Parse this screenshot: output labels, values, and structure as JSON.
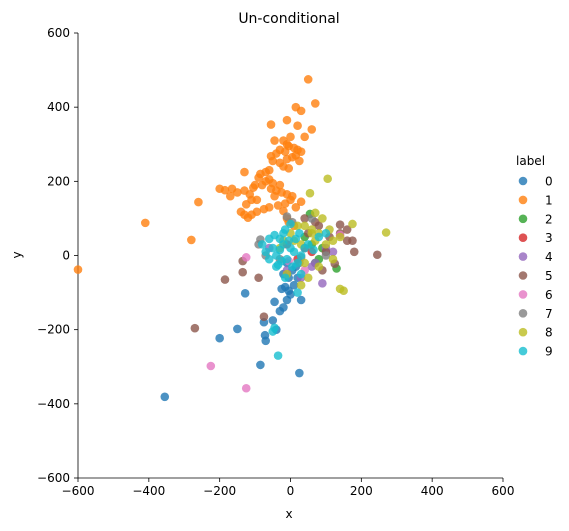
{
  "chart_data": {
    "type": "scatter",
    "title": "Un-conditional",
    "xlabel": "x",
    "ylabel": "y",
    "xlim": [
      -600,
      600
    ],
    "ylim": [
      -600,
      600
    ],
    "xticks": [
      -600,
      -400,
      -200,
      0,
      200,
      400,
      600
    ],
    "yticks": [
      -600,
      -400,
      -200,
      0,
      200,
      400,
      600
    ],
    "grid": false,
    "legend": {
      "title": "label",
      "placement": "right"
    },
    "series": [
      {
        "name": "0",
        "color": "#1f77b4",
        "points": [
          [
            -355,
            -381
          ],
          [
            -200,
            -223
          ],
          [
            -150,
            -198
          ],
          [
            -85,
            -295
          ],
          [
            -70,
            -230
          ],
          [
            -72,
            -215
          ],
          [
            -75,
            -180
          ],
          [
            -50,
            -175
          ],
          [
            -30,
            -150
          ],
          [
            -20,
            -140
          ],
          [
            -10,
            -120
          ],
          [
            0,
            -105
          ],
          [
            -5,
            -95
          ],
          [
            10,
            -80
          ],
          [
            -15,
            -85
          ],
          [
            -128,
            -102
          ],
          [
            -45,
            -125
          ],
          [
            -25,
            -90
          ],
          [
            -5,
            -60
          ],
          [
            5,
            -40
          ],
          [
            15,
            -30
          ],
          [
            -20,
            -50
          ],
          [
            -10,
            -20
          ],
          [
            20,
            -60
          ],
          [
            25,
            -317
          ],
          [
            -40,
            -200
          ],
          [
            30,
            -120
          ]
        ]
      },
      {
        "name": "1",
        "color": "#ff7f0e",
        "points": [
          [
            50,
            475
          ],
          [
            70,
            410
          ],
          [
            15,
            400
          ],
          [
            30,
            390
          ],
          [
            -10,
            365
          ],
          [
            20,
            350
          ],
          [
            -55,
            353
          ],
          [
            60,
            340
          ],
          [
            40,
            320
          ],
          [
            0,
            320
          ],
          [
            -20,
            310
          ],
          [
            -45,
            310
          ],
          [
            -10,
            300
          ],
          [
            -5,
            295
          ],
          [
            10,
            290
          ],
          [
            20,
            285
          ],
          [
            30,
            280
          ],
          [
            -30,
            285
          ],
          [
            -15,
            280
          ],
          [
            -40,
            275
          ],
          [
            -55,
            268
          ],
          [
            -50,
            255
          ],
          [
            -30,
            250
          ],
          [
            -10,
            260
          ],
          [
            5,
            265
          ],
          [
            15,
            270
          ],
          [
            25,
            255
          ],
          [
            -20,
            240
          ],
          [
            -5,
            235
          ],
          [
            -60,
            230
          ],
          [
            -70,
            225
          ],
          [
            -85,
            220
          ],
          [
            -90,
            210
          ],
          [
            -70,
            200
          ],
          [
            -50,
            195
          ],
          [
            -30,
            190
          ],
          [
            -40,
            175
          ],
          [
            -25,
            170
          ],
          [
            -10,
            165
          ],
          [
            5,
            160
          ],
          [
            0,
            150
          ],
          [
            -15,
            140
          ],
          [
            -35,
            135
          ],
          [
            -60,
            130
          ],
          [
            -75,
            125
          ],
          [
            -95,
            118
          ],
          [
            -110,
            110
          ],
          [
            -120,
            102
          ],
          [
            -130,
            110
          ],
          [
            -140,
            118
          ],
          [
            -125,
            138
          ],
          [
            -110,
            150
          ],
          [
            -115,
            165
          ],
          [
            -130,
            175
          ],
          [
            -150,
            170
          ],
          [
            -165,
            180
          ],
          [
            -185,
            176
          ],
          [
            -105,
            183
          ],
          [
            -55,
            180
          ],
          [
            -45,
            160
          ],
          [
            -20,
            120
          ],
          [
            -10,
            100
          ],
          [
            -5,
            90
          ],
          [
            10,
            80
          ],
          [
            15,
            130
          ],
          [
            30,
            145
          ],
          [
            -260,
            144
          ],
          [
            -410,
            88
          ],
          [
            -280,
            42
          ],
          [
            -600,
            -38
          ],
          [
            -170,
            160
          ],
          [
            -200,
            180
          ],
          [
            -95,
            150
          ],
          [
            -80,
            190
          ],
          [
            -60,
            205
          ],
          [
            -130,
            225
          ],
          [
            -100,
            190
          ]
        ]
      },
      {
        "name": "2",
        "color": "#2ca02c",
        "points": [
          [
            130,
            -35
          ],
          [
            55,
            112
          ],
          [
            70,
            -20
          ],
          [
            90,
            20
          ],
          [
            60,
            30
          ],
          [
            40,
            50
          ],
          [
            80,
            -10
          ]
        ]
      },
      {
        "name": "3",
        "color": "#d62728",
        "points": [
          [
            40,
            20
          ],
          [
            60,
            10
          ],
          [
            20,
            -10
          ],
          [
            -10,
            30
          ]
        ]
      },
      {
        "name": "4",
        "color": "#9467bd",
        "points": [
          [
            90,
            -75
          ],
          [
            -60,
            20
          ],
          [
            -10,
            -40
          ],
          [
            30,
            -60
          ],
          [
            60,
            -30
          ],
          [
            100,
            20
          ],
          [
            70,
            -20
          ],
          [
            120,
            10
          ]
        ]
      },
      {
        "name": "5",
        "color": "#8c564b",
        "points": [
          [
            -270,
            -196
          ],
          [
            -135,
            -45
          ],
          [
            -185,
            -65
          ],
          [
            -135,
            -15
          ],
          [
            -75,
            -165
          ],
          [
            -90,
            -60
          ],
          [
            245,
            2
          ],
          [
            140,
            60
          ],
          [
            160,
            40
          ],
          [
            125,
            -22
          ],
          [
            100,
            10
          ],
          [
            110,
            50
          ],
          [
            160,
            70
          ],
          [
            80,
            80
          ],
          [
            50,
            60
          ],
          [
            70,
            90
          ],
          [
            40,
            100
          ],
          [
            140,
            83
          ],
          [
            175,
            40
          ],
          [
            180,
            10
          ],
          [
            90,
            -40
          ]
        ]
      },
      {
        "name": "6",
        "color": "#e377c2",
        "points": [
          [
            -225,
            -298
          ],
          [
            -125,
            -358
          ],
          [
            -125,
            -5
          ],
          [
            -5,
            -15
          ],
          [
            40,
            -40
          ],
          [
            140,
            55
          ]
        ]
      },
      {
        "name": "7",
        "color": "#7f7f7f",
        "points": [
          [
            -10,
            105
          ],
          [
            5,
            90
          ],
          [
            -85,
            43
          ],
          [
            -90,
            30
          ],
          [
            25,
            -20
          ],
          [
            30,
            -5
          ],
          [
            -70,
            0
          ],
          [
            -30,
            -10
          ],
          [
            60,
            100
          ],
          [
            100,
            0
          ]
        ]
      },
      {
        "name": "8",
        "color": "#bcbd22",
        "points": [
          [
            105,
            207
          ],
          [
            55,
            168
          ],
          [
            70,
            115
          ],
          [
            175,
            85
          ],
          [
            270,
            62
          ],
          [
            150,
            -95
          ],
          [
            140,
            -90
          ],
          [
            -10,
            -50
          ],
          [
            40,
            -20
          ],
          [
            80,
            -30
          ],
          [
            60,
            60
          ],
          [
            100,
            30
          ],
          [
            120,
            40
          ],
          [
            140,
            50
          ],
          [
            40,
            80
          ],
          [
            70,
            40
          ],
          [
            110,
            70
          ],
          [
            120,
            -10
          ],
          [
            50,
            -60
          ],
          [
            30,
            -80
          ],
          [
            -30,
            20
          ],
          [
            -20,
            40
          ],
          [
            0,
            60
          ],
          [
            20,
            80
          ],
          [
            60,
            70
          ],
          [
            90,
            100
          ],
          [
            10,
            40
          ],
          [
            30,
            30
          ],
          [
            80,
            60
          ]
        ]
      },
      {
        "name": "9",
        "color": "#17becf",
        "points": [
          [
            -35,
            -270
          ],
          [
            -50,
            -205
          ],
          [
            -45,
            -195
          ],
          [
            20,
            -100
          ],
          [
            -15,
            -60
          ],
          [
            30,
            -50
          ],
          [
            -60,
            45
          ],
          [
            -80,
            30
          ],
          [
            -70,
            10
          ],
          [
            -50,
            20
          ],
          [
            -40,
            0
          ],
          [
            -30,
            15
          ],
          [
            -20,
            30
          ],
          [
            -10,
            -10
          ],
          [
            0,
            20
          ],
          [
            10,
            10
          ],
          [
            20,
            -20
          ],
          [
            -5,
            40
          ],
          [
            -25,
            -15
          ],
          [
            15,
            45
          ],
          [
            -40,
            -30
          ],
          [
            5,
            -30
          ],
          [
            30,
            0
          ],
          [
            40,
            20
          ],
          [
            25,
            60
          ],
          [
            50,
            30
          ],
          [
            -20,
            60
          ],
          [
            0,
            85
          ],
          [
            100,
            60
          ],
          [
            80,
            50
          ],
          [
            -60,
            -10
          ],
          [
            -30,
            45
          ],
          [
            -45,
            55
          ],
          [
            -15,
            70
          ],
          [
            -35,
            -25
          ],
          [
            65,
            15
          ]
        ]
      }
    ]
  }
}
